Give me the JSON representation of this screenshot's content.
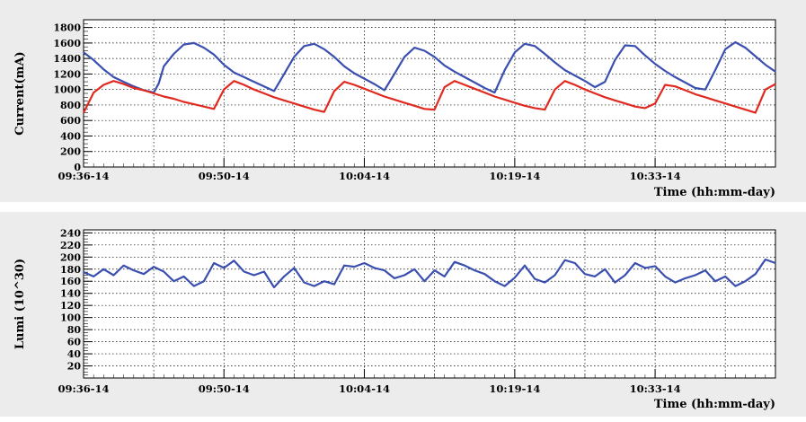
{
  "chart_data": [
    {
      "type": "line",
      "title": "",
      "xlabel": "Time (hh:mm-day)",
      "ylabel": "Current(mA)",
      "xlim": [
        "09:36-14",
        "10:45-14"
      ],
      "ylim": [
        0,
        1900
      ],
      "grid": true,
      "x_ticks": [
        "09:36-14",
        "09:50-14",
        "10:04-14",
        "10:19-14",
        "10:33-14"
      ],
      "y_ticks": [
        "0",
        "200",
        "400",
        "600",
        "800",
        "1000",
        "1200",
        "1400",
        "1600",
        "1800"
      ],
      "series": [
        {
          "color": "#3a4fb0",
          "points": [
            [
              "09:36",
              1480
            ],
            [
              "09:37",
              1380
            ],
            [
              "09:38",
              1260
            ],
            [
              "09:39",
              1160
            ],
            [
              "09:40",
              1100
            ],
            [
              "09:41",
              1040
            ],
            [
              "09:42",
              990
            ],
            [
              "09:43",
              960
            ],
            [
              "09:43.5",
              1080
            ],
            [
              "09:44",
              1300
            ],
            [
              "09:45",
              1460
            ],
            [
              "09:46",
              1580
            ],
            [
              "09:47",
              1600
            ],
            [
              "09:48",
              1540
            ],
            [
              "09:49",
              1450
            ],
            [
              "09:50",
              1320
            ],
            [
              "09:51",
              1220
            ],
            [
              "09:52",
              1160
            ],
            [
              "09:53",
              1100
            ],
            [
              "09:54",
              1040
            ],
            [
              "09:55",
              980
            ],
            [
              "09:56",
              1200
            ],
            [
              "09:57",
              1420
            ],
            [
              "09:58",
              1560
            ],
            [
              "09:59",
              1590
            ],
            [
              "10:00",
              1520
            ],
            [
              "10:01",
              1420
            ],
            [
              "10:02",
              1300
            ],
            [
              "10:03",
              1210
            ],
            [
              "10:04",
              1140
            ],
            [
              "10:05",
              1070
            ],
            [
              "10:06",
              990
            ],
            [
              "10:07",
              1200
            ],
            [
              "10:08",
              1420
            ],
            [
              "10:09",
              1540
            ],
            [
              "10:10",
              1500
            ],
            [
              "10:11",
              1420
            ],
            [
              "10:12",
              1310
            ],
            [
              "10:13",
              1230
            ],
            [
              "10:14",
              1160
            ],
            [
              "10:15",
              1090
            ],
            [
              "10:16",
              1020
            ],
            [
              "10:17",
              960
            ],
            [
              "10:18",
              1250
            ],
            [
              "10:19",
              1480
            ],
            [
              "10:20",
              1590
            ],
            [
              "10:21",
              1560
            ],
            [
              "10:22",
              1460
            ],
            [
              "10:23",
              1350
            ],
            [
              "10:24",
              1250
            ],
            [
              "10:25",
              1180
            ],
            [
              "10:26",
              1110
            ],
            [
              "10:27",
              1030
            ],
            [
              "10:28",
              1100
            ],
            [
              "10:29",
              1380
            ],
            [
              "10:30",
              1570
            ],
            [
              "10:31",
              1560
            ],
            [
              "10:32",
              1440
            ],
            [
              "10:33",
              1330
            ],
            [
              "10:34",
              1240
            ],
            [
              "10:35",
              1160
            ],
            [
              "10:36",
              1090
            ],
            [
              "10:37",
              1020
            ],
            [
              "10:38",
              1000
            ],
            [
              "10:39",
              1250
            ],
            [
              "10:40",
              1520
            ],
            [
              "10:41",
              1610
            ],
            [
              "10:42",
              1540
            ],
            [
              "10:43",
              1430
            ],
            [
              "10:44",
              1320
            ],
            [
              "10:45",
              1230
            ]
          ]
        },
        {
          "color": "#e02a20",
          "points": [
            [
              "09:36",
              700
            ],
            [
              "09:37",
              960
            ],
            [
              "09:38",
              1060
            ],
            [
              "09:39",
              1110
            ],
            [
              "09:40",
              1070
            ],
            [
              "09:41",
              1020
            ],
            [
              "09:42",
              990
            ],
            [
              "09:43",
              950
            ],
            [
              "09:44",
              910
            ],
            [
              "09:45",
              880
            ],
            [
              "09:46",
              840
            ],
            [
              "09:47",
              810
            ],
            [
              "09:48",
              780
            ],
            [
              "09:49",
              750
            ],
            [
              "09:50",
              1000
            ],
            [
              "09:51",
              1110
            ],
            [
              "09:52",
              1060
            ],
            [
              "09:53",
              1000
            ],
            [
              "09:54",
              950
            ],
            [
              "09:55",
              900
            ],
            [
              "09:56",
              860
            ],
            [
              "09:57",
              820
            ],
            [
              "09:58",
              780
            ],
            [
              "09:59",
              740
            ],
            [
              "10:00",
              710
            ],
            [
              "10:01",
              980
            ],
            [
              "10:02",
              1100
            ],
            [
              "10:03",
              1060
            ],
            [
              "10:04",
              1010
            ],
            [
              "10:05",
              960
            ],
            [
              "10:06",
              910
            ],
            [
              "10:07",
              870
            ],
            [
              "10:08",
              830
            ],
            [
              "10:09",
              790
            ],
            [
              "10:10",
              750
            ],
            [
              "10:11",
              740
            ],
            [
              "10:12",
              1030
            ],
            [
              "10:13",
              1110
            ],
            [
              "10:14",
              1060
            ],
            [
              "10:15",
              1010
            ],
            [
              "10:16",
              960
            ],
            [
              "10:17",
              910
            ],
            [
              "10:18",
              870
            ],
            [
              "10:19",
              830
            ],
            [
              "10:20",
              790
            ],
            [
              "10:21",
              760
            ],
            [
              "10:22",
              740
            ],
            [
              "10:23",
              1000
            ],
            [
              "10:24",
              1110
            ],
            [
              "10:25",
              1060
            ],
            [
              "10:26",
              1000
            ],
            [
              "10:27",
              950
            ],
            [
              "10:28",
              900
            ],
            [
              "10:29",
              860
            ],
            [
              "10:30",
              820
            ],
            [
              "10:31",
              780
            ],
            [
              "10:32",
              760
            ],
            [
              "10:33",
              820
            ],
            [
              "10:34",
              1060
            ],
            [
              "10:35",
              1040
            ],
            [
              "10:36",
              990
            ],
            [
              "10:37",
              940
            ],
            [
              "10:38",
              900
            ],
            [
              "10:39",
              860
            ],
            [
              "10:40",
              820
            ],
            [
              "10:41",
              780
            ],
            [
              "10:42",
              740
            ],
            [
              "10:43",
              700
            ],
            [
              "10:44",
              1000
            ],
            [
              "10:45",
              1070
            ]
          ]
        }
      ]
    },
    {
      "type": "line",
      "title": "",
      "xlabel": "Time (hh:mm-day)",
      "ylabel": "Lumi (10^30)",
      "xlim": [
        "09:36-14",
        "10:45-14"
      ],
      "ylim": [
        0,
        245
      ],
      "grid": true,
      "x_ticks": [
        "09:36-14",
        "09:50-14",
        "10:04-14",
        "10:19-14",
        "10:33-14"
      ],
      "y_ticks": [
        "20",
        "40",
        "60",
        "80",
        "100",
        "120",
        "140",
        "160",
        "180",
        "200",
        "220",
        "240"
      ],
      "series": [
        {
          "color": "#3a4fb0",
          "points": [
            [
              "09:36",
              175
            ],
            [
              "09:37",
              168
            ],
            [
              "09:38",
              180
            ],
            [
              "09:39",
              170
            ],
            [
              "09:40",
              186
            ],
            [
              "09:41",
              178
            ],
            [
              "09:42",
              172
            ],
            [
              "09:43",
              184
            ],
            [
              "09:44",
              176
            ],
            [
              "09:45",
              160
            ],
            [
              "09:46",
              168
            ],
            [
              "09:47",
              152
            ],
            [
              "09:48",
              160
            ],
            [
              "09:49",
              190
            ],
            [
              "09:50",
              182
            ],
            [
              "09:51",
              194
            ],
            [
              "09:52",
              176
            ],
            [
              "09:53",
              170
            ],
            [
              "09:54",
              176
            ],
            [
              "09:55",
              150
            ],
            [
              "09:56",
              168
            ],
            [
              "09:57",
              182
            ],
            [
              "09:58",
              158
            ],
            [
              "09:59",
              152
            ],
            [
              "10:00",
              160
            ],
            [
              "10:01",
              155
            ],
            [
              "10:02",
              186
            ],
            [
              "10:03",
              184
            ],
            [
              "10:04",
              190
            ],
            [
              "10:05",
              182
            ],
            [
              "10:06",
              178
            ],
            [
              "10:07",
              165
            ],
            [
              "10:08",
              170
            ],
            [
              "10:09",
              180
            ],
            [
              "10:10",
              160
            ],
            [
              "10:11",
              178
            ],
            [
              "10:12",
              168
            ],
            [
              "10:13",
              192
            ],
            [
              "10:14",
              186
            ],
            [
              "10:15",
              178
            ],
            [
              "10:16",
              172
            ],
            [
              "10:17",
              160
            ],
            [
              "10:18",
              152
            ],
            [
              "10:19",
              166
            ],
            [
              "10:20",
              186
            ],
            [
              "10:21",
              164
            ],
            [
              "10:22",
              158
            ],
            [
              "10:23",
              170
            ],
            [
              "10:24",
              195
            ],
            [
              "10:25",
              190
            ],
            [
              "10:26",
              172
            ],
            [
              "10:27",
              168
            ],
            [
              "10:28",
              180
            ],
            [
              "10:29",
              158
            ],
            [
              "10:30",
              170
            ],
            [
              "10:31",
              190
            ],
            [
              "10:32",
              182
            ],
            [
              "10:33",
              185
            ],
            [
              "10:34",
              168
            ],
            [
              "10:35",
              158
            ],
            [
              "10:36",
              165
            ],
            [
              "10:37",
              170
            ],
            [
              "10:38",
              178
            ],
            [
              "10:39",
              160
            ],
            [
              "10:40",
              168
            ],
            [
              "10:41",
              152
            ],
            [
              "10:42",
              160
            ],
            [
              "10:43",
              172
            ],
            [
              "10:44",
              196
            ],
            [
              "10:45",
              190
            ]
          ]
        }
      ]
    }
  ]
}
